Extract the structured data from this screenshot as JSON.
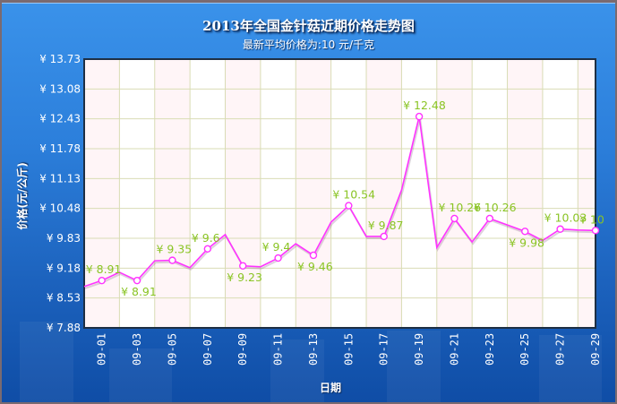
{
  "chart_data": {
    "type": "line",
    "title": "2013年全国金针菇近期价格走势图",
    "subtitle": "最新平均价格为:10 元/千克",
    "xlabel": "日期",
    "ylabel": "价格(元/公斤)",
    "ylim": [
      7.88,
      13.73
    ],
    "y_ticks": [
      "¥13.73",
      "¥13.08",
      "¥12.43",
      "¥11.78",
      "¥11.13",
      "¥10.48",
      "¥9.83",
      "¥9.18",
      "¥8.53",
      "¥7.88"
    ],
    "x_ticks": [
      "09-01",
      "09-03",
      "09-05",
      "09-07",
      "09-09",
      "09-11",
      "09-13",
      "09-15",
      "09-17",
      "09-19",
      "09-21",
      "09-23",
      "09-25",
      "09-27",
      "09-29"
    ],
    "grid": true,
    "legend": "none",
    "series": [
      {
        "name": "金针菇价格",
        "color": "#ff33ff",
        "x": [
          "08-31",
          "09-01",
          "09-02",
          "09-03",
          "09-04",
          "09-05",
          "09-06",
          "09-07",
          "09-08",
          "09-09",
          "09-10",
          "09-11",
          "09-12",
          "09-13",
          "09-14",
          "09-15",
          "09-16",
          "09-17",
          "09-18",
          "09-19",
          "09-20",
          "09-21",
          "09-22",
          "09-23",
          "09-24",
          "09-25",
          "09-26",
          "09-27",
          "09-28",
          "09-29"
        ],
        "values": [
          8.78,
          8.91,
          9.09,
          8.91,
          9.34,
          9.35,
          9.19,
          9.6,
          9.91,
          9.23,
          9.21,
          9.4,
          9.71,
          9.46,
          10.18,
          10.54,
          9.87,
          9.87,
          10.88,
          12.48,
          9.63,
          10.26,
          9.75,
          10.26,
          10.12,
          9.98,
          9.78,
          10.03,
          10.01,
          10.0
        ]
      }
    ],
    "data_labels": [
      {
        "x": "09-01",
        "text": "¥8.91",
        "pos": "above"
      },
      {
        "x": "09-03",
        "text": "¥8.91",
        "pos": "below"
      },
      {
        "x": "09-05",
        "text": "¥9.35",
        "pos": "above"
      },
      {
        "x": "09-07",
        "text": "¥9.6",
        "pos": "above"
      },
      {
        "x": "09-09",
        "text": "¥9.23",
        "pos": "below"
      },
      {
        "x": "09-11",
        "text": "¥9.4",
        "pos": "above"
      },
      {
        "x": "09-13",
        "text": "¥9.46",
        "pos": "below"
      },
      {
        "x": "09-15",
        "text": "¥10.54",
        "pos": "above"
      },
      {
        "x": "09-17",
        "text": "¥9.87",
        "pos": "above"
      },
      {
        "x": "09-19",
        "text": "¥12.48",
        "pos": "above"
      },
      {
        "x": "09-21",
        "text": "¥10.26",
        "pos": "above"
      },
      {
        "x": "09-23",
        "text": "¥10.26",
        "pos": "above"
      },
      {
        "x": "09-25",
        "text": "¥9.98",
        "pos": "below"
      },
      {
        "x": "09-27",
        "text": "¥10.03",
        "pos": "above"
      },
      {
        "x": "09-29",
        "text": "¥10",
        "pos": "above"
      }
    ]
  },
  "colors": {
    "line": "#ff33ff",
    "label": "#8ac424",
    "grid": "#d9dcb4",
    "plot_bg_a": "#fff5f7",
    "plot_bg_b": "#ffffff"
  }
}
